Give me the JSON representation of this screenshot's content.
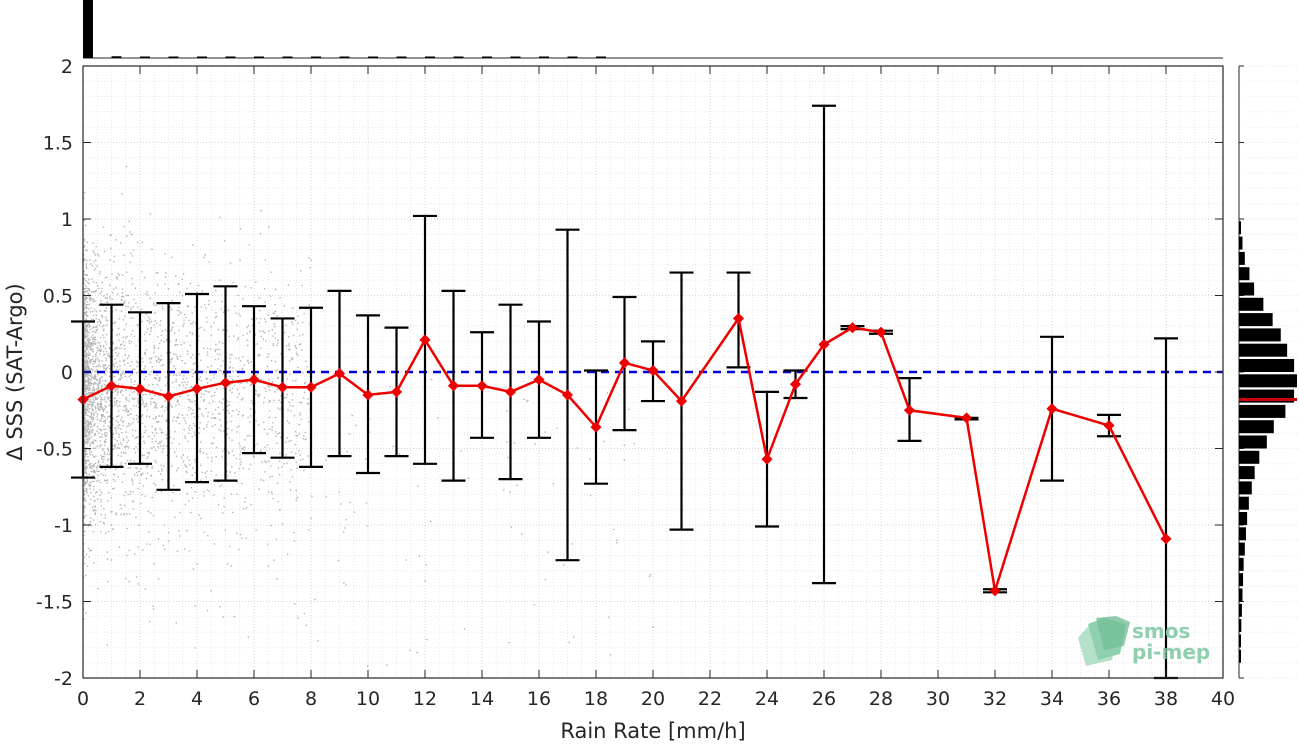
{
  "chart_data": {
    "type": "line",
    "xlabel": "Rain Rate [mm/h]",
    "ylabel": "Δ SSS (SAT-Argo)",
    "xlim": [
      0,
      40
    ],
    "ylim": [
      -2,
      2
    ],
    "xticks": [
      0,
      2,
      4,
      6,
      8,
      10,
      12,
      14,
      16,
      18,
      20,
      22,
      24,
      26,
      28,
      30,
      32,
      34,
      36,
      38,
      40
    ],
    "yticks": [
      -2,
      -1.5,
      -1,
      -0.5,
      0,
      0.5,
      1,
      1.5,
      2
    ],
    "ytick_labels": [
      "-2",
      "-1.5",
      "-1",
      "-0.5",
      "0",
      "0.5",
      "1",
      "1.5",
      "2"
    ],
    "grid": true,
    "reference_line": {
      "y": 0,
      "color": "#0000dd",
      "style": "dashed"
    },
    "series": [
      {
        "color": "#ee0000",
        "marker": "diamond",
        "points": [
          {
            "x": 0,
            "y": -0.18,
            "low": -0.69,
            "high": 0.33
          },
          {
            "x": 1,
            "y": -0.09,
            "low": -0.62,
            "high": 0.44
          },
          {
            "x": 2,
            "y": -0.11,
            "low": -0.6,
            "high": 0.39
          },
          {
            "x": 3,
            "y": -0.16,
            "low": -0.77,
            "high": 0.45
          },
          {
            "x": 4,
            "y": -0.11,
            "low": -0.72,
            "high": 0.51
          },
          {
            "x": 5,
            "y": -0.07,
            "low": -0.71,
            "high": 0.56
          },
          {
            "x": 6,
            "y": -0.05,
            "low": -0.53,
            "high": 0.43
          },
          {
            "x": 7,
            "y": -0.1,
            "low": -0.56,
            "high": 0.35
          },
          {
            "x": 8,
            "y": -0.1,
            "low": -0.62,
            "high": 0.42
          },
          {
            "x": 9,
            "y": -0.01,
            "low": -0.55,
            "high": 0.53
          },
          {
            "x": 10,
            "y": -0.15,
            "low": -0.66,
            "high": 0.37
          },
          {
            "x": 11,
            "y": -0.13,
            "low": -0.55,
            "high": 0.29
          },
          {
            "x": 12,
            "y": 0.21,
            "low": -0.6,
            "high": 1.02
          },
          {
            "x": 13,
            "y": -0.09,
            "low": -0.71,
            "high": 0.53
          },
          {
            "x": 14,
            "y": -0.09,
            "low": -0.43,
            "high": 0.26
          },
          {
            "x": 15,
            "y": -0.13,
            "low": -0.7,
            "high": 0.44
          },
          {
            "x": 16,
            "y": -0.05,
            "low": -0.43,
            "high": 0.33
          },
          {
            "x": 17,
            "y": -0.15,
            "low": -1.23,
            "high": 0.93
          },
          {
            "x": 18,
            "y": -0.36,
            "low": -0.73,
            "high": 0.01
          },
          {
            "x": 19,
            "y": 0.06,
            "low": -0.38,
            "high": 0.49
          },
          {
            "x": 20,
            "y": 0.01,
            "low": -0.19,
            "high": 0.2
          },
          {
            "x": 21,
            "y": -0.19,
            "low": -1.03,
            "high": 0.65
          },
          {
            "x": 23,
            "y": 0.35,
            "low": 0.03,
            "high": 0.65
          },
          {
            "x": 24,
            "y": -0.57,
            "low": -1.01,
            "high": -0.13
          },
          {
            "x": 25,
            "y": -0.08,
            "low": -0.17,
            "high": 0.01
          },
          {
            "x": 26,
            "y": 0.18,
            "low": -1.38,
            "high": 1.74
          },
          {
            "x": 27,
            "y": 0.29,
            "low": 0.28,
            "high": 0.3
          },
          {
            "x": 28,
            "y": 0.26,
            "low": 0.25,
            "high": 0.27
          },
          {
            "x": 29,
            "y": -0.25,
            "low": -0.45,
            "high": -0.04
          },
          {
            "x": 31,
            "y": -0.3,
            "low": -0.31,
            "high": -0.3
          },
          {
            "x": 32,
            "y": -1.43,
            "low": -1.44,
            "high": -1.42
          },
          {
            "x": 34,
            "y": -0.24,
            "low": -0.71,
            "high": 0.23
          },
          {
            "x": 36,
            "y": -0.35,
            "low": -0.42,
            "high": -0.28
          },
          {
            "x": 38,
            "y": -1.09,
            "low": -2.0,
            "high": 0.22
          }
        ]
      }
    ],
    "top_histogram": {
      "bins": [
        0,
        1,
        2,
        3,
        4,
        5,
        6,
        7,
        8,
        9,
        10,
        11,
        12,
        13,
        14,
        15,
        16,
        17,
        18
      ],
      "values": [
        1.0,
        0.03,
        0.02,
        0.02,
        0.02,
        0.01,
        0.01,
        0.01,
        0.01,
        0.01,
        0.01,
        0.01,
        0.005,
        0.005,
        0.005,
        0.005,
        0.005,
        0.005,
        0.005
      ]
    },
    "right_histogram": {
      "bins": [
        -1.9,
        -1.8,
        -1.7,
        -1.6,
        -1.5,
        -1.4,
        -1.3,
        -1.2,
        -1.1,
        -1.0,
        -0.9,
        -0.8,
        -0.7,
        -0.6,
        -0.5,
        -0.4,
        -0.3,
        -0.2,
        -0.1,
        0.0,
        0.1,
        0.2,
        0.3,
        0.4,
        0.5,
        0.6,
        0.7,
        0.8,
        0.9
      ],
      "values": [
        0.02,
        0.03,
        0.04,
        0.05,
        0.06,
        0.07,
        0.08,
        0.1,
        0.12,
        0.14,
        0.17,
        0.22,
        0.27,
        0.35,
        0.48,
        0.6,
        0.8,
        0.95,
        1.0,
        0.95,
        0.83,
        0.72,
        0.58,
        0.42,
        0.26,
        0.18,
        0.1,
        0.06,
        0.03
      ],
      "mean_line_y": -0.18,
      "mean_line_color": "#cc0000"
    },
    "scatter": {
      "color": "#9a9a9a",
      "x_range": [
        0,
        8
      ],
      "y_range": [
        -1.9,
        1.6
      ]
    }
  },
  "logo": {
    "line1": "smos",
    "line2": "pi-mep",
    "color": "#6fbf94"
  }
}
